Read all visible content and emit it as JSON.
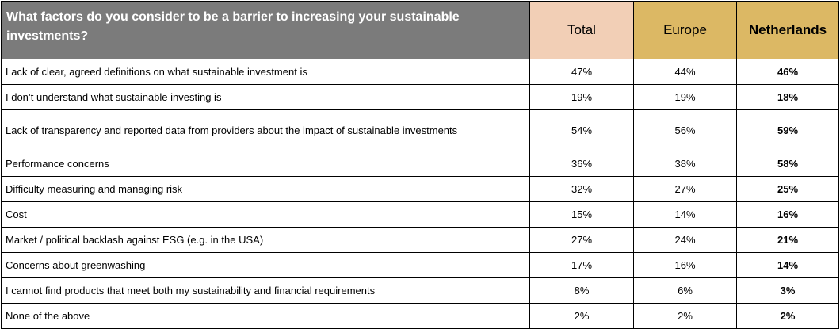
{
  "header": {
    "question": "What factors do you consider to be a barrier to increasing your sustainable investments?",
    "col_total": "Total",
    "col_europe": "Europe",
    "col_netherlands": "Netherlands"
  },
  "rows": [
    {
      "label": "Lack of clear, agreed definitions on what sustainable investment is",
      "total": "47%",
      "europe": "44%",
      "netherlands": "46%"
    },
    {
      "label": "I don’t understand what sustainable investing is",
      "total": "19%",
      "europe": "19%",
      "netherlands": "18%"
    },
    {
      "label": "Lack of transparency and reported data from providers about the impact of sustainable investments",
      "total": "54%",
      "europe": "56%",
      "netherlands": "59%"
    },
    {
      "label": "Performance concerns",
      "total": "36%",
      "europe": "38%",
      "netherlands": "58%"
    },
    {
      "label": "Difficulty measuring and managing risk",
      "total": "32%",
      "europe": "27%",
      "netherlands": "25%"
    },
    {
      "label": "Cost",
      "total": "15%",
      "europe": "14%",
      "netherlands": "16%"
    },
    {
      "label": "Market / political backlash against ESG (e.g. in the USA)",
      "total": "27%",
      "europe": "24%",
      "netherlands": "21%"
    },
    {
      "label": "Concerns about greenwashing",
      "total": "17%",
      "europe": "16%",
      "netherlands": "14%"
    },
    {
      "label": "I cannot find products that meet both my sustainability and financial requirements",
      "total": "8%",
      "europe": "6%",
      "netherlands": "3%"
    },
    {
      "label": "None of the above",
      "total": "2%",
      "europe": "2%",
      "netherlands": "2%"
    }
  ],
  "colors": {
    "question_bg": "#7b7b7b",
    "total_bg": "#f2cfb6",
    "europe_bg": "#dcb864",
    "netherlands_bg": "#dcb864"
  }
}
